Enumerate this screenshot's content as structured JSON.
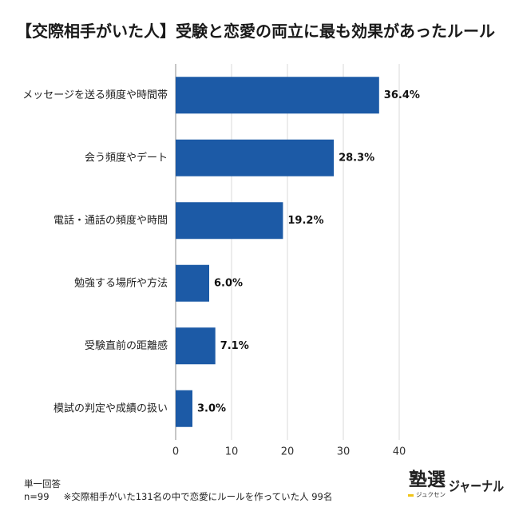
{
  "chart_data": {
    "type": "bar",
    "orientation": "horizontal",
    "title": "【交際相手がいた人】受験と恋愛の両立に最も効果があったルール",
    "categories": [
      "メッセージを送る頻度や時間帯",
      "会う頻度やデート",
      "電話・通話の頻度や時間",
      "勉強する場所や方法",
      "受験直前の距離感",
      "模試の判定や成績の扱い"
    ],
    "values": [
      36.4,
      28.3,
      19.2,
      6.0,
      7.1,
      3.0
    ],
    "value_labels": [
      "36.4%",
      "28.3%",
      "19.2%",
      "6.0%",
      "7.1%",
      "3.0%"
    ],
    "xlim": [
      0,
      40
    ],
    "xticks": [
      0,
      10,
      20,
      30,
      40
    ],
    "xlabel": "",
    "ylabel": "",
    "grid": true,
    "bar_color": "#1c5aa6"
  },
  "footer": {
    "answer_type": "単一回答",
    "sample_size": "n=99",
    "sample_note": "※交際相手がいた131名の中で恋愛にルールを作っていた人 99名"
  },
  "logo": {
    "mark": "塾選",
    "reading": "ジュクセン",
    "name": "ジャーナル"
  }
}
